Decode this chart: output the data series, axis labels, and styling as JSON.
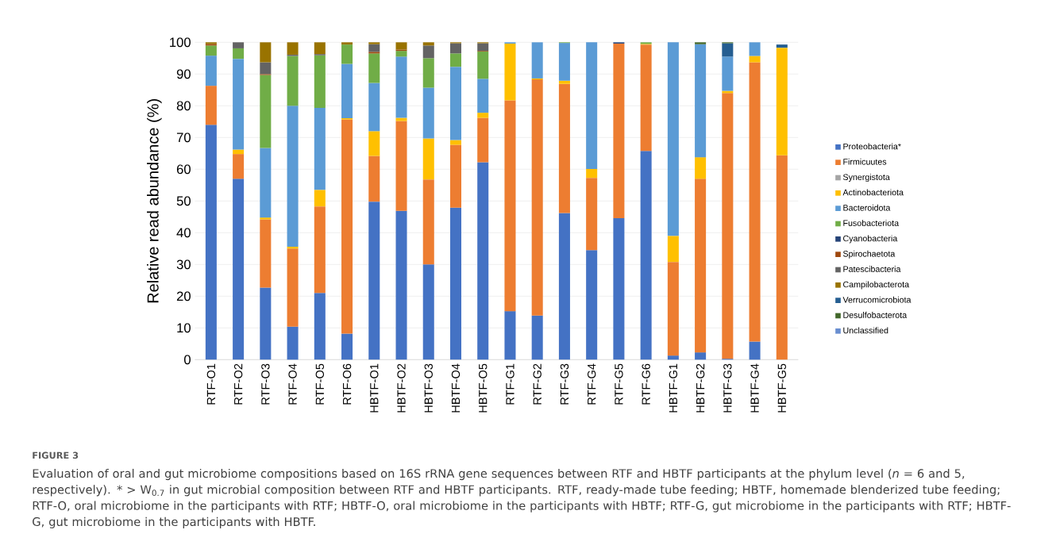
{
  "chart_data": {
    "type": "bar",
    "stacked": true,
    "ylabel": "Relative read abundance (%)",
    "categories": [
      "RTF-O1",
      "RTF-O2",
      "RTF-O3",
      "RTF-O4",
      "RTF-O5",
      "RTF-O6",
      "HBTF-O1",
      "HBTF-O2",
      "HBTF-O3",
      "HBTF-O4",
      "HBTF-O5",
      "RTF-G1",
      "RTF-G2",
      "RTF-G3",
      "RTF-G4",
      "RTF-G5",
      "RTF-G6",
      "HBTF-G1",
      "HBTF-G2",
      "HBTF-G3",
      "HBTF-G4",
      "HBTF-G5"
    ],
    "series": [
      {
        "name": "Proteobacteria*",
        "color": "#4472c4",
        "values": [
          74,
          57,
          22.7,
          10.4,
          21,
          8.2,
          49.8,
          46.9,
          30,
          47.9,
          62.2,
          15.3,
          13.9,
          46.2,
          34.5,
          44.6,
          65.8,
          1.3,
          2.3,
          0.3,
          5.7,
          null
        ]
      },
      {
        "name": "Firmicuutes",
        "color": "#ed7d31",
        "values": [
          12.3,
          7.8,
          21.5,
          24.6,
          27.3,
          67.5,
          14.4,
          28.3,
          26.8,
          19.8,
          14,
          66.4,
          74.4,
          40.7,
          22.8,
          55,
          33.5,
          29.5,
          54.7,
          83.7,
          88,
          64.4
        ]
      },
      {
        "name": "Synergistota",
        "color": "#a5a5a5",
        "values": [
          null,
          null,
          null,
          null,
          null,
          null,
          null,
          null,
          null,
          null,
          null,
          null,
          null,
          null,
          null,
          null,
          null,
          null,
          null,
          null,
          null,
          null
        ]
      },
      {
        "name": "Actinobacteriota",
        "color": "#ffc000",
        "values": [
          null,
          1.4,
          0.6,
          0.6,
          5.2,
          0.4,
          7.8,
          1,
          12.9,
          1.5,
          1.6,
          17.9,
          0.3,
          1,
          2.8,
          null,
          0.2,
          8.2,
          6.8,
          0.7,
          2,
          33.9
        ]
      },
      {
        "name": "Bacteroidota",
        "color": "#5b9bd5",
        "values": [
          9.5,
          28.6,
          21.9,
          44.4,
          25.8,
          17.1,
          15.2,
          19.3,
          16,
          23.1,
          10.7,
          0.4,
          11.4,
          11.9,
          39.9,
          null,
          null,
          61,
          35.6,
          10.8,
          4.3,
          null
        ]
      },
      {
        "name": "Fusobacteriota",
        "color": "#70ad47",
        "values": [
          3.2,
          3.3,
          23,
          15.7,
          16.6,
          6.1,
          9.3,
          1.8,
          9.3,
          4.2,
          8.6,
          null,
          null,
          0.2,
          null,
          null,
          0.5,
          null,
          null,
          null,
          null,
          null
        ]
      },
      {
        "name": "Cyanobacteria",
        "color": "#264478",
        "values": [
          null,
          null,
          null,
          null,
          null,
          null,
          null,
          null,
          null,
          null,
          null,
          null,
          null,
          null,
          null,
          0.4,
          null,
          null,
          null,
          null,
          null,
          null
        ]
      },
      {
        "name": "Spirochaetota",
        "color": "#9e480e",
        "values": [
          0.5,
          null,
          0.3,
          null,
          null,
          null,
          0.5,
          0.4,
          null,
          null,
          0.2,
          null,
          null,
          null,
          null,
          null,
          null,
          null,
          null,
          null,
          null,
          null
        ]
      },
      {
        "name": "Patescibacteria",
        "color": "#636363",
        "values": [
          null,
          1.9,
          3.7,
          0.4,
          0.4,
          null,
          2.4,
          null,
          4,
          3.2,
          2.4,
          null,
          null,
          null,
          null,
          null,
          null,
          null,
          null,
          null,
          null,
          null
        ]
      },
      {
        "name": "Campilobacterota",
        "color": "#997300",
        "values": [
          0.5,
          null,
          6.3,
          3.9,
          3.7,
          0.7,
          0.6,
          2.3,
          1,
          0.3,
          0.3,
          null,
          null,
          null,
          null,
          null,
          null,
          null,
          null,
          null,
          null,
          null
        ]
      },
      {
        "name": "Verrucomicrobiota",
        "color": "#255e91",
        "values": [
          null,
          null,
          null,
          null,
          null,
          null,
          null,
          null,
          null,
          null,
          null,
          null,
          null,
          null,
          null,
          null,
          null,
          null,
          null,
          4.2,
          null,
          1
        ]
      },
      {
        "name": "Desulfobacterota",
        "color": "#43682b",
        "values": [
          null,
          null,
          null,
          null,
          null,
          null,
          null,
          null,
          null,
          null,
          null,
          null,
          null,
          null,
          null,
          null,
          null,
          null,
          0.6,
          0.3,
          null,
          null
        ]
      },
      {
        "name": "Unclassified",
        "color": "#698ed0",
        "values": [
          null,
          null,
          null,
          null,
          null,
          null,
          null,
          null,
          null,
          null,
          null,
          null,
          null,
          null,
          null,
          null,
          null,
          null,
          null,
          null,
          null,
          null
        ]
      }
    ],
    "ylim": [
      0,
      100
    ],
    "yticks": [
      0,
      10,
      20,
      30,
      40,
      50,
      60,
      70,
      80,
      90,
      100
    ],
    "grid": "y",
    "legend": "right",
    "annotations": [
      "FIGURE 3",
      "Evaluation of oral and gut microbiome compositions based on 16S rRNA gene sequences between RTF and HBTF participants at the phylum level (*n* = 6 and 5, respectively). * > W$_{0.7}$ in gut microbial composition between RTF and HBTF participants. RTF, ready-made tube feeding; HBTF, homemade blenderized tube feeding; RTF-O, oral microbiome in the participants with RTF; HBTF-O, oral microbiome in the participants with HBTF; RTF-G, gut microbiome in the participants with RTF; HBTF-G, gut microbiome in the participants with HBTF."
    ]
  }
}
